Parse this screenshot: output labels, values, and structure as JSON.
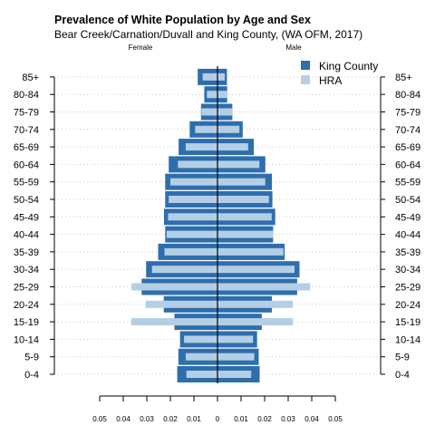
{
  "chart_data": {
    "type": "bar",
    "orientation": "horizontal",
    "layout": "population-pyramid",
    "title": "Prevalence of White Population by Age and Sex",
    "subtitle": "Bear Creek/Carnation/Duvall and King County, (WA OFM, 2017)",
    "left_label": "Female",
    "right_label": "Male",
    "categories": [
      "0-4",
      "5-9",
      "10-14",
      "15-19",
      "20-24",
      "25-29",
      "30-34",
      "35-39",
      "40-44",
      "45-49",
      "50-54",
      "55-59",
      "60-64",
      "65-69",
      "70-74",
      "75-79",
      "80-84",
      "85+"
    ],
    "x_ticks": [
      -0.05,
      -0.04,
      -0.03,
      -0.02,
      -0.01,
      0,
      0.01,
      0.02,
      0.03,
      0.04,
      0.05
    ],
    "x_tick_labels": [
      "0.05",
      "0.04",
      "0.03",
      "0.02",
      "0.01",
      "0",
      "0.01",
      "0.02",
      "0.03",
      "0.04",
      "0.05"
    ],
    "xlim": [
      -0.05,
      0.05
    ],
    "grid": "dotted horizontal",
    "legend_position": "top-right",
    "series": [
      {
        "name": "King County",
        "color": "#2e6ead",
        "female": [
          0.0171,
          0.0166,
          0.0159,
          0.0183,
          0.0228,
          0.0322,
          0.0303,
          0.0252,
          0.0222,
          0.0227,
          0.0222,
          0.0222,
          0.0207,
          0.0165,
          0.0118,
          0.007,
          0.0056,
          0.0084
        ],
        "male": [
          0.0179,
          0.0175,
          0.0168,
          0.0188,
          0.0231,
          0.0338,
          0.0348,
          0.0285,
          0.0236,
          0.0245,
          0.0233,
          0.0231,
          0.0203,
          0.0154,
          0.0107,
          0.0063,
          0.0041,
          0.004
        ]
      },
      {
        "name": "HRA",
        "color": "#b4cfe5",
        "female": [
          0.0132,
          0.0135,
          0.0142,
          0.0366,
          0.0305,
          0.0365,
          0.0278,
          0.0225,
          0.0216,
          0.021,
          0.0207,
          0.02,
          0.0168,
          0.0135,
          0.0095,
          0.0068,
          0.0045,
          0.0063
        ],
        "male": [
          0.0143,
          0.0156,
          0.0151,
          0.032,
          0.032,
          0.0393,
          0.0327,
          0.028,
          0.0236,
          0.023,
          0.0218,
          0.0203,
          0.0178,
          0.013,
          0.0093,
          0.0063,
          0.0041,
          0.0031
        ]
      }
    ]
  }
}
